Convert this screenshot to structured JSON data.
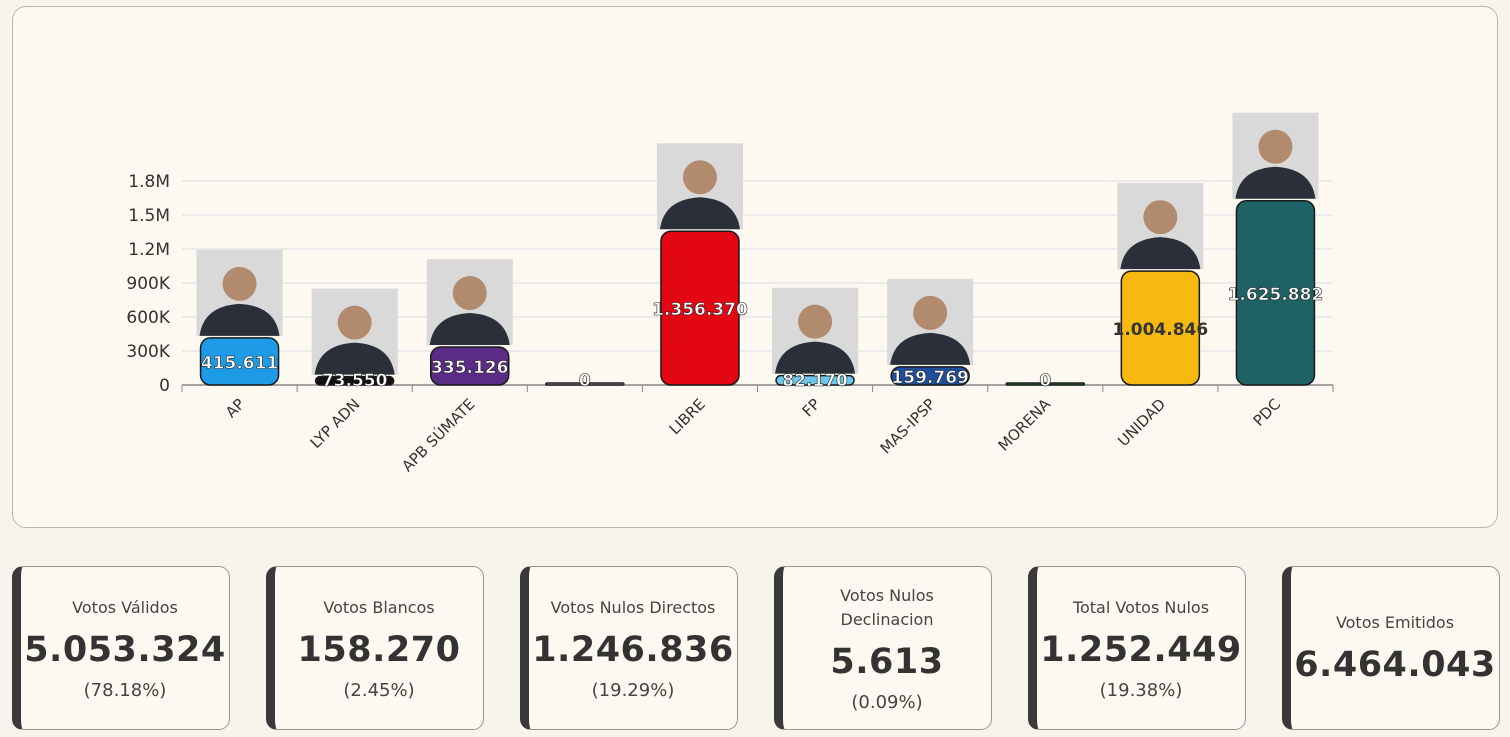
{
  "chart_data": {
    "type": "bar",
    "categories": [
      "AP",
      "LYP ADN",
      "APB SÚMATE",
      "",
      "LIBRE",
      "FP",
      "MAS-IPSP",
      "MORENA",
      "UNIDAD",
      "PDC"
    ],
    "values": [
      415611,
      73550,
      335126,
      0,
      1356370,
      82170,
      159769,
      0,
      1004846,
      1625882
    ],
    "value_labels": [
      "415.611",
      "73.550",
      "335.126",
      "0",
      "1.356.370",
      "82.170",
      "159.769",
      "0",
      "1.004.846",
      "1.625.882"
    ],
    "colors": [
      "#1d9be6",
      "#111111",
      "#5b2c86",
      "#c9c4cf",
      "#e30613",
      "#6ec6ea",
      "#1f4f9c",
      "#3d8b63",
      "#f5b90f",
      "#1f6265"
    ],
    "ylim": [
      0,
      1800000
    ],
    "yticks": [
      0,
      300000,
      600000,
      900000,
      1200000,
      1500000,
      1800000
    ],
    "ytick_labels": [
      "0",
      "300K",
      "600K",
      "900K",
      "1.2M",
      "1.5M",
      "1.8M"
    ],
    "has_photo": [
      true,
      true,
      true,
      false,
      true,
      true,
      true,
      false,
      true,
      true
    ],
    "grid": true,
    "legend": "none",
    "title": "",
    "xlabel": "",
    "ylabel": ""
  },
  "stats": [
    {
      "label": "Votos Válidos",
      "value": "5.053.324",
      "pct": "(78.18%)"
    },
    {
      "label": "Votos Blancos",
      "value": "158.270",
      "pct": "(2.45%)"
    },
    {
      "label": "Votos Nulos Directos",
      "value": "1.246.836",
      "pct": "(19.29%)"
    },
    {
      "label": "Votos Nulos Declinacion",
      "value": "5.613",
      "pct": "(0.09%)"
    },
    {
      "label": "Total Votos Nulos",
      "value": "1.252.449",
      "pct": "(19.38%)"
    },
    {
      "label": "Votos Emitidos",
      "value": "6.464.043",
      "pct": ""
    }
  ]
}
